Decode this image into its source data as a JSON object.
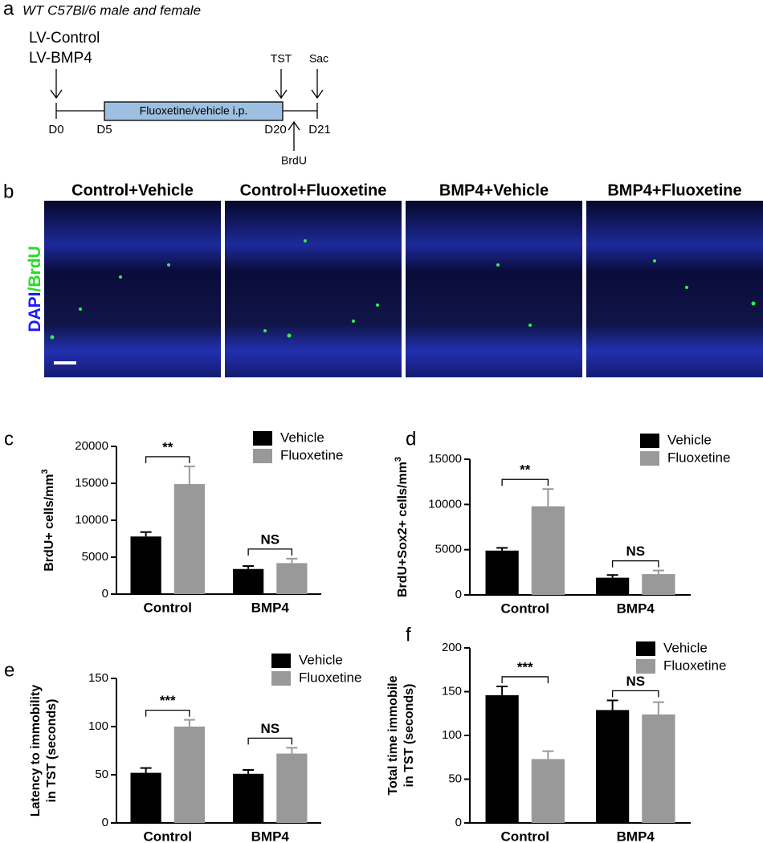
{
  "panel_a": {
    "letter": "a",
    "subtitle": "WT C57Bl/6 male and female",
    "treatments": [
      "LV-Control",
      "LV-BMP4"
    ],
    "box_label": "Fluoxetine/vehicle i.p.",
    "days": [
      "D0",
      "D5",
      "D20",
      "D21"
    ],
    "events": [
      "TST",
      "Sac",
      "BrdU"
    ]
  },
  "panel_b": {
    "letter": "b",
    "stain": [
      "DAPI",
      "/BrdU"
    ],
    "conditions": [
      "Control+Vehicle",
      "Control+Fluoxetine",
      "BMP4+Vehicle",
      "BMP4+Fluoxetine"
    ]
  },
  "chart_data": [
    {
      "type": "bar",
      "letter": "c",
      "ylabel": [
        "BrdU+ cells/mm"
      ],
      "ylabel_sup": "3",
      "categories": [
        "Control",
        "BMP4"
      ],
      "series": [
        {
          "name": "Vehicle",
          "color": "#000000",
          "values": [
            7800,
            3400
          ],
          "errors": [
            600,
            400
          ]
        },
        {
          "name": "Fluoxetine",
          "color": "#999999",
          "values": [
            14900,
            4200
          ],
          "errors": [
            2400,
            600
          ]
        }
      ],
      "significance": [
        "**",
        "NS"
      ],
      "ylim": [
        0,
        20000
      ],
      "yticks": [
        0,
        5000,
        10000,
        15000,
        20000
      ],
      "legend": "upper right"
    },
    {
      "type": "bar",
      "letter": "d",
      "ylabel": [
        "BrdU+Sox2+ cells/mm"
      ],
      "ylabel_sup": "3",
      "categories": [
        "Control",
        "BMP4"
      ],
      "series": [
        {
          "name": "Vehicle",
          "color": "#000000",
          "values": [
            4900,
            1900
          ],
          "errors": [
            300,
            300
          ]
        },
        {
          "name": "Fluoxetine",
          "color": "#999999",
          "values": [
            9800,
            2300
          ],
          "errors": [
            1900,
            400
          ]
        }
      ],
      "significance": [
        "**",
        "NS"
      ],
      "ylim": [
        0,
        15000
      ],
      "yticks": [
        0,
        5000,
        10000,
        15000
      ],
      "legend": "upper right"
    },
    {
      "type": "bar",
      "letter": "e",
      "ylabel": [
        "Latency to immobility",
        "in TST (seconds)"
      ],
      "categories": [
        "Control",
        "BMP4"
      ],
      "series": [
        {
          "name": "Vehicle",
          "color": "#000000",
          "values": [
            52,
            51
          ],
          "errors": [
            5,
            4
          ]
        },
        {
          "name": "Fluoxetine",
          "color": "#999999",
          "values": [
            100,
            72
          ],
          "errors": [
            7,
            6
          ]
        }
      ],
      "significance": [
        "***",
        "NS"
      ],
      "ylim": [
        0,
        150
      ],
      "yticks": [
        0,
        50,
        100,
        150
      ],
      "legend": "upper right"
    },
    {
      "type": "bar",
      "letter": "f",
      "ylabel": [
        "Total time immobile",
        "in TST (seconds)"
      ],
      "categories": [
        "Control",
        "BMP4"
      ],
      "series": [
        {
          "name": "Vehicle",
          "color": "#000000",
          "values": [
            146,
            129
          ],
          "errors": [
            10,
            11
          ]
        },
        {
          "name": "Fluoxetine",
          "color": "#999999",
          "values": [
            73,
            124
          ],
          "errors": [
            9,
            14
          ]
        }
      ],
      "significance": [
        "***",
        "NS"
      ],
      "ylim": [
        0,
        200
      ],
      "yticks": [
        0,
        50,
        100,
        150,
        200
      ],
      "legend": "upper right"
    }
  ]
}
